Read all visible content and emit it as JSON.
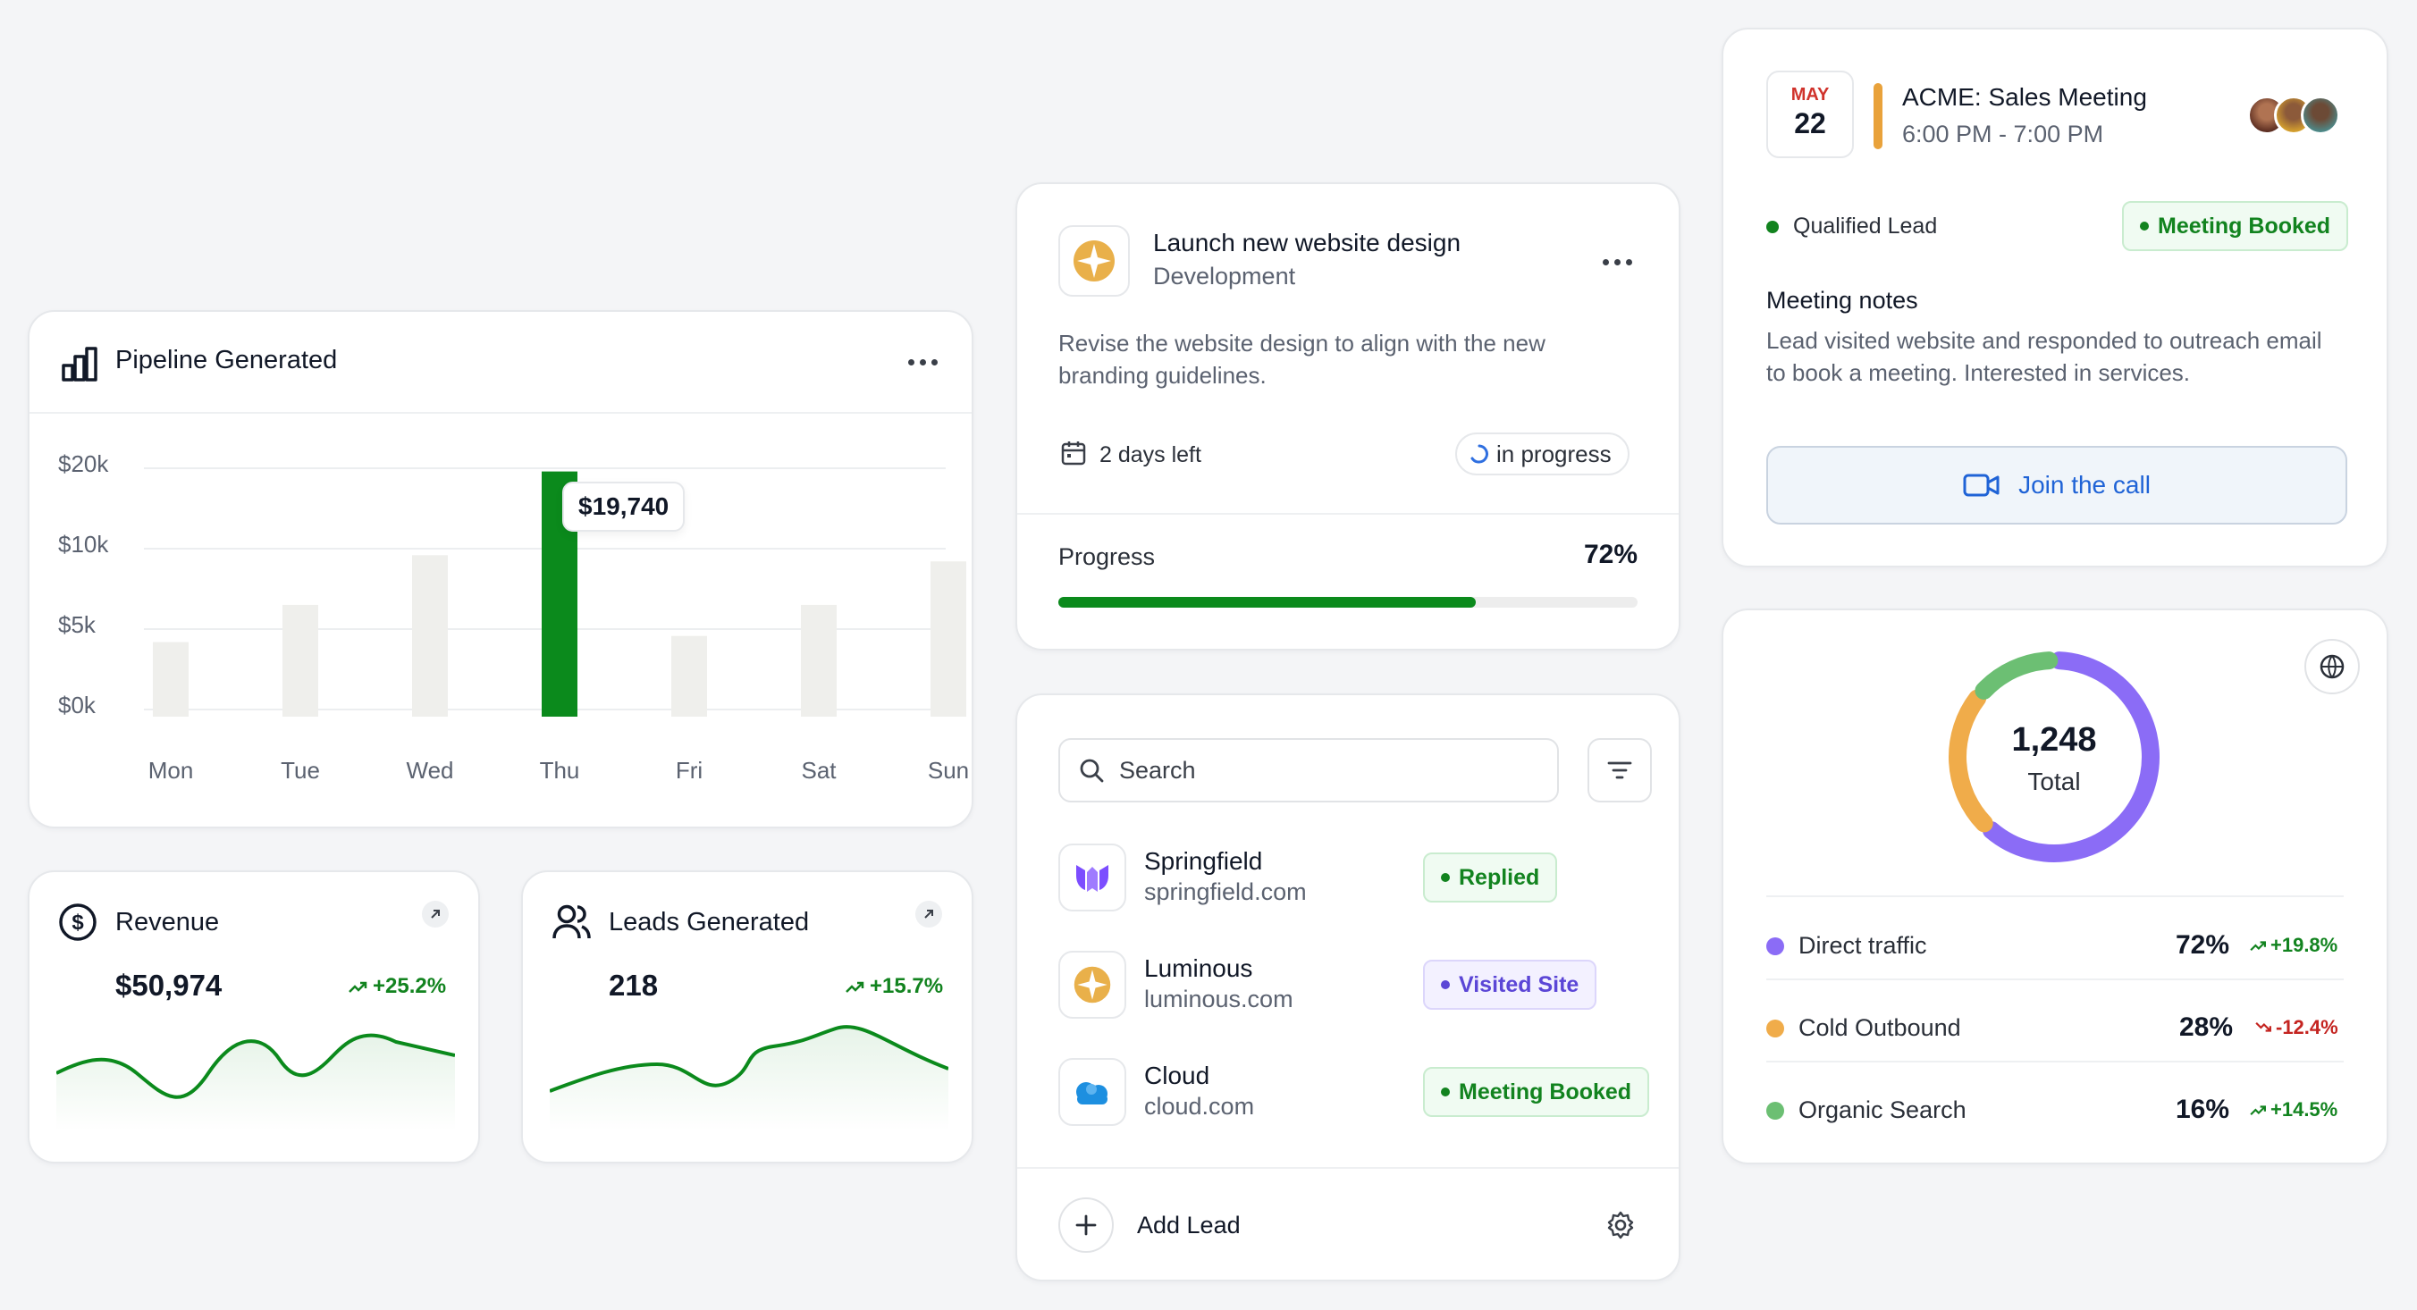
{
  "pipeline": {
    "title": "Pipeline Generated",
    "y_ticks": [
      "$20k",
      "$10k",
      "$5k",
      "$0k"
    ],
    "tooltip": "$19,740",
    "colors": {
      "highlight": "#0b8a1c",
      "bar": "#efefec"
    }
  },
  "chart_data": {
    "type": "bar",
    "title": "Pipeline Generated",
    "categories": [
      "Mon",
      "Tue",
      "Wed",
      "Thu",
      "Fri",
      "Sat",
      "Sun"
    ],
    "values": [
      6000,
      9000,
      13000,
      19740,
      6500,
      9000,
      12500
    ],
    "highlighted_category": "Thu",
    "y_tick_labels": [
      "$0k",
      "$5k",
      "$10k",
      "$20k"
    ],
    "grid": true
  },
  "revenue": {
    "title": "Revenue",
    "value": "$50,974",
    "change": "+25.2%",
    "trend": "up"
  },
  "leads": {
    "title": "Leads Generated",
    "value": "218",
    "change": "+15.7%",
    "trend": "up"
  },
  "task": {
    "title": "Launch new website design",
    "category": "Development",
    "description": "Revise the website design to align with the new branding guidelines.",
    "due": "2 days left",
    "status": "in progress",
    "progress_label": "Progress",
    "progress_text": "72%",
    "progress_fraction": 0.72,
    "accent": "#0b8a1c"
  },
  "leads_list": {
    "search_placeholder": "Search",
    "items": [
      {
        "name": "Springfield",
        "domain": "springfield.com",
        "status": "Replied",
        "status_style": "green",
        "logo": "springfield-logo"
      },
      {
        "name": "Luminous",
        "domain": "luminous.com",
        "status": "Visited Site",
        "status_style": "purple",
        "logo": "luminous-logo"
      },
      {
        "name": "Cloud",
        "domain": "cloud.com",
        "status": "Meeting Booked",
        "status_style": "green",
        "logo": "cloud-logo"
      }
    ],
    "add_label": "Add Lead"
  },
  "meeting": {
    "month": "MAY",
    "day": "22",
    "title": "ACME: Sales Meeting",
    "time": "6:00 PM - 7:00 PM",
    "lead_status": "Qualified Lead",
    "badge": "Meeting Booked",
    "notes_title": "Meeting notes",
    "notes": "Lead visited website and responded to outreach email to book a meeting. Interested in services.",
    "join_label": "Join the call",
    "accent": "#e9a23b"
  },
  "traffic": {
    "total_value": "1,248",
    "total_label": "Total",
    "sources": [
      {
        "name": "Direct traffic",
        "percent": "72%",
        "share": 0.72,
        "change": "+19.8%",
        "trend": "up",
        "color": "#8b6cf6"
      },
      {
        "name": "Cold Outbound",
        "percent": "28%",
        "share": 0.28,
        "change": "-12.4%",
        "trend": "down",
        "color": "#f0ac4a"
      },
      {
        "name": "Organic Search",
        "percent": "16%",
        "share": 0.16,
        "change": "+14.5%",
        "trend": "up",
        "color": "#6cbf73"
      }
    ]
  }
}
